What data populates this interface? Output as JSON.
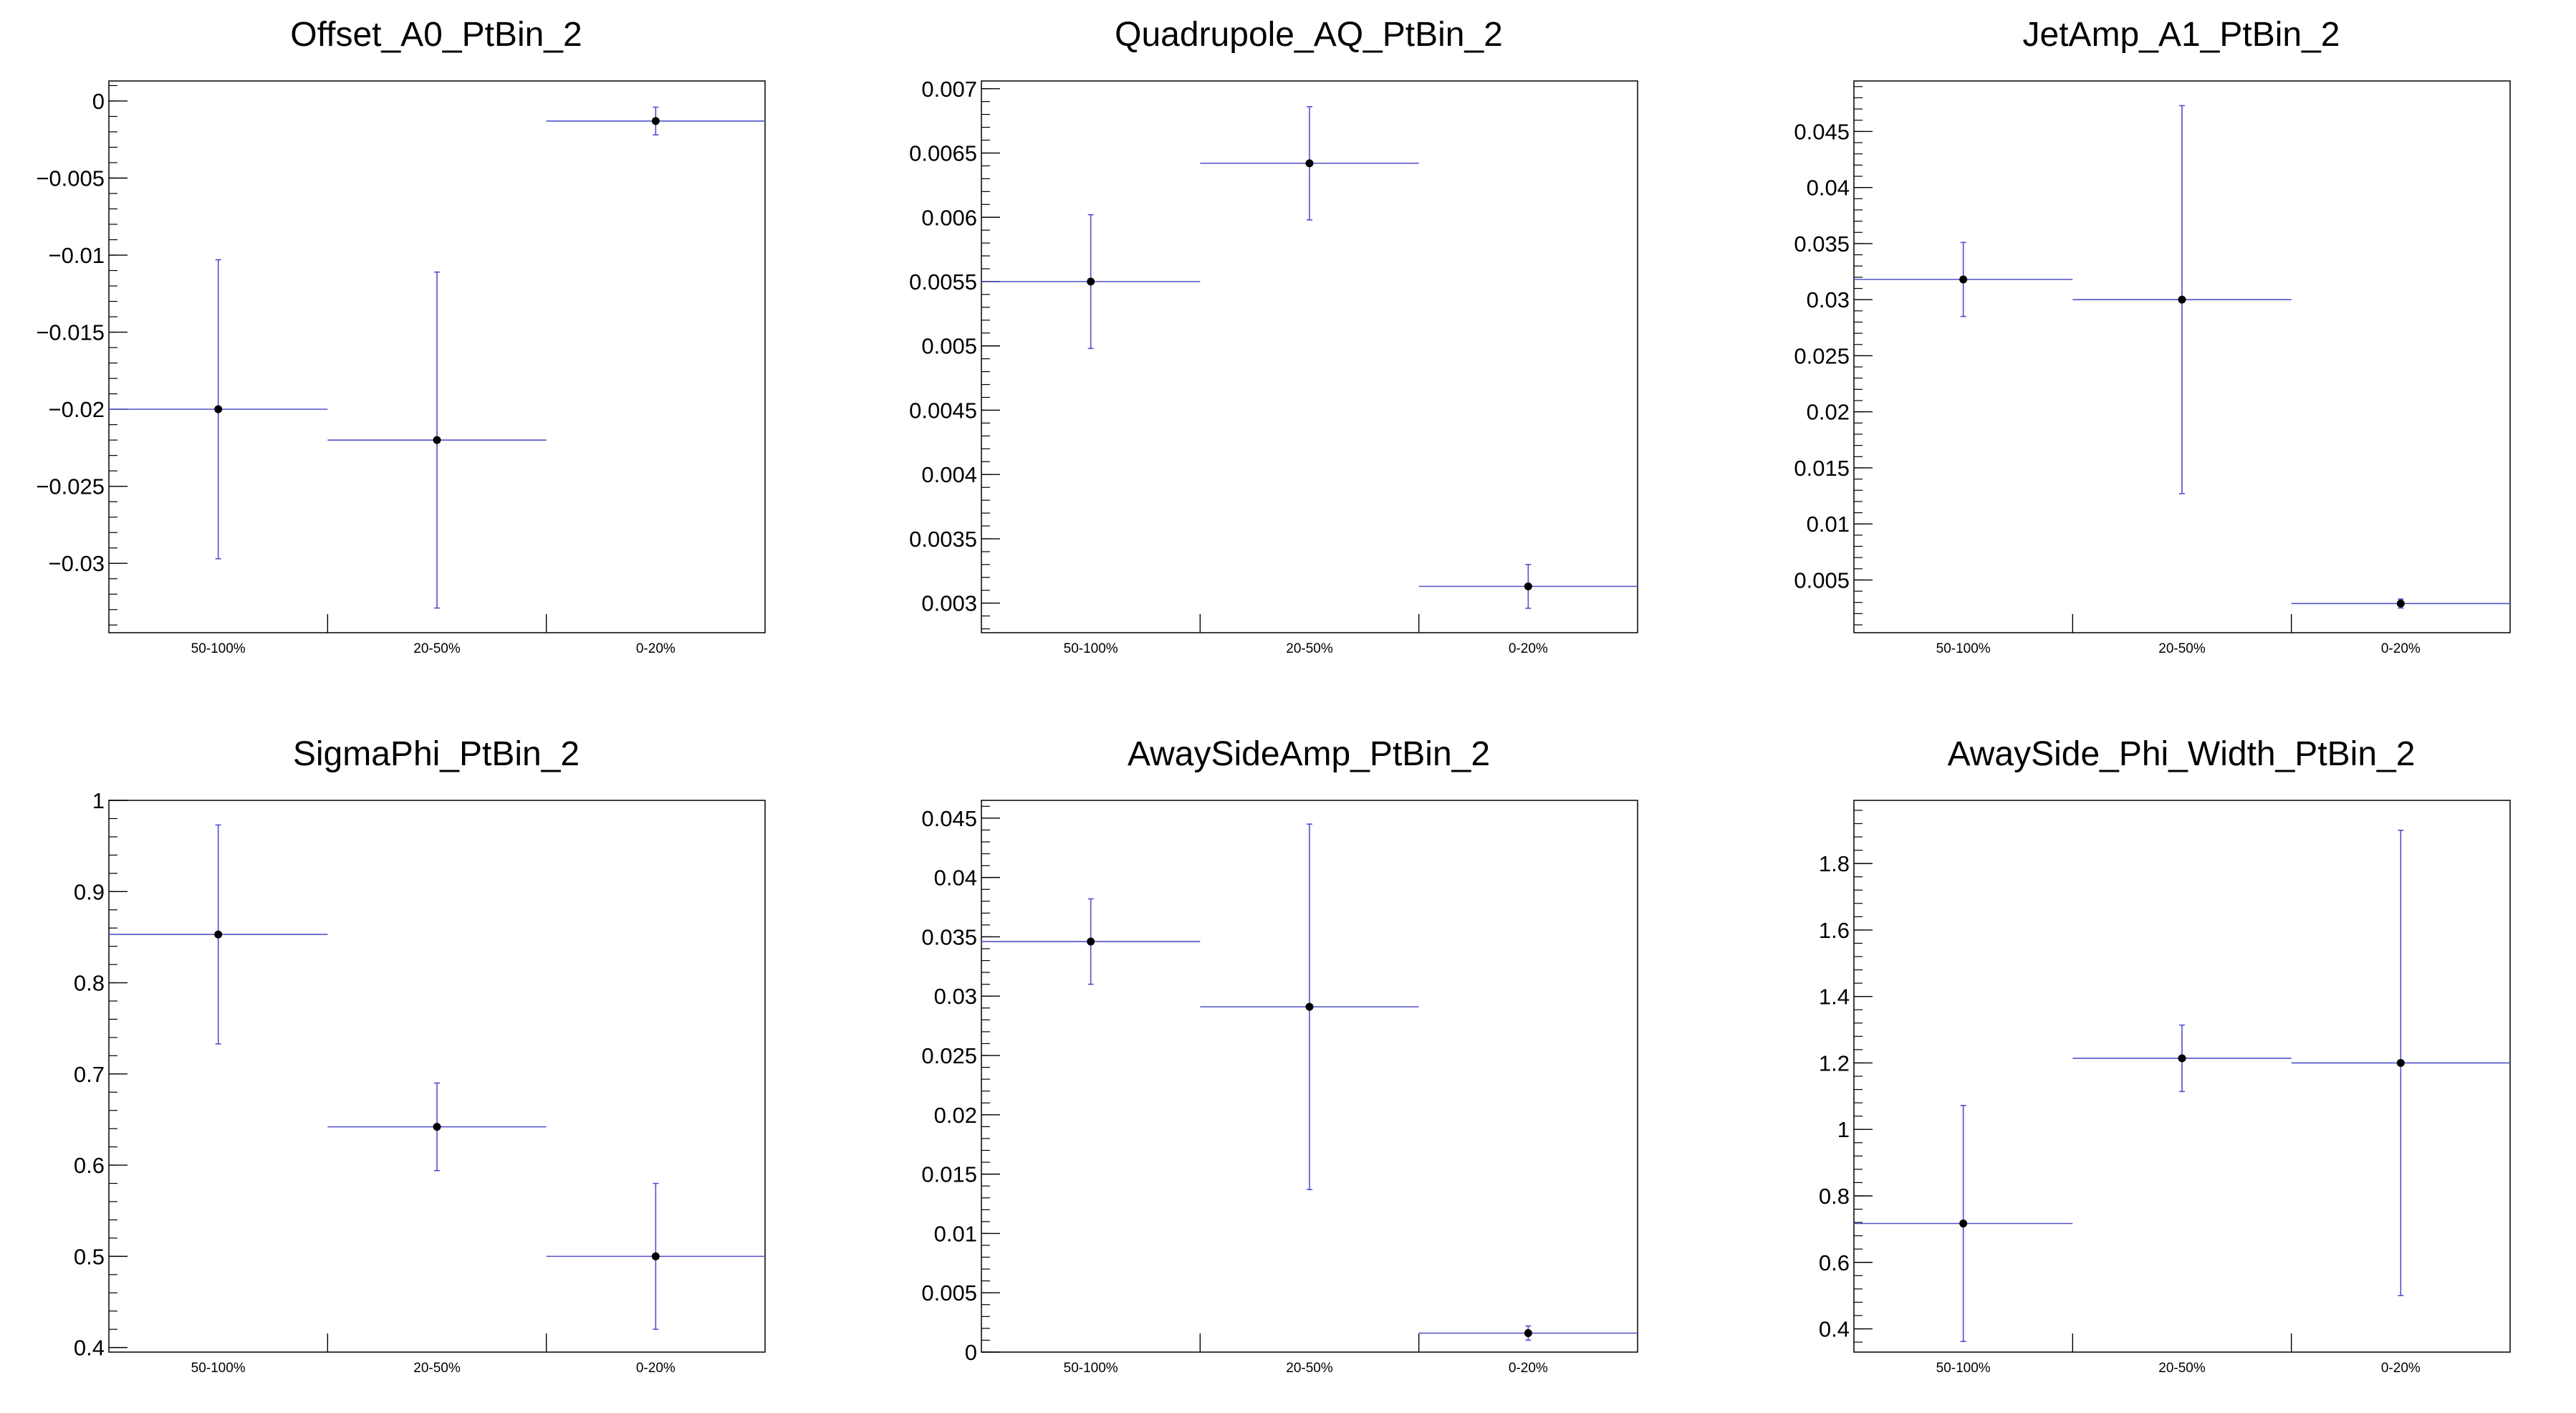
{
  "colors": {
    "error_bar": "#5050cc",
    "marker": "#000000",
    "axis": "#000000"
  },
  "chart_data": [
    {
      "type": "scatter",
      "title": "Offset_A0_PtBin_2",
      "categories": [
        "50-100%",
        "20-50%",
        "0-20%"
      ],
      "values": [
        -0.02,
        -0.022,
        -0.0013
      ],
      "errors": [
        0.0097,
        0.0109,
        0.0009
      ],
      "ylim": [
        -0.0345,
        0.0013
      ],
      "yticks": [
        0,
        -0.005,
        -0.01,
        -0.015,
        -0.02,
        -0.025,
        -0.03
      ],
      "ytick_labels": [
        "0",
        "−0.005",
        "−0.01",
        "−0.015",
        "−0.02",
        "−0.025",
        "−0.03"
      ],
      "grid": false
    },
    {
      "type": "scatter",
      "title": "Quadrupole_AQ_PtBin_2",
      "categories": [
        "50-100%",
        "20-50%",
        "0-20%"
      ],
      "values": [
        0.0055,
        0.00642,
        0.00313
      ],
      "errors": [
        0.00052,
        0.00044,
        0.00017
      ],
      "ylim": [
        0.00277,
        0.00706
      ],
      "yticks": [
        0.003,
        0.0035,
        0.004,
        0.0045,
        0.005,
        0.0055,
        0.006,
        0.0065,
        0.007
      ],
      "ytick_labels": [
        "0.003",
        "0.0035",
        "0.004",
        "0.0045",
        "0.005",
        "0.0055",
        "0.006",
        "0.0065",
        "0.007"
      ],
      "grid": false
    },
    {
      "type": "scatter",
      "title": "JetAmp_A1_PtBin_2",
      "categories": [
        "50-100%",
        "20-50%",
        "0-20%"
      ],
      "values": [
        0.0318,
        0.03,
        0.0029
      ],
      "errors": [
        0.0033,
        0.0173,
        0.0004
      ],
      "ylim": [
        0.0003,
        0.0495
      ],
      "yticks": [
        0.005,
        0.01,
        0.015,
        0.02,
        0.025,
        0.03,
        0.035,
        0.04,
        0.045
      ],
      "ytick_labels": [
        "0.005",
        "0.01",
        "0.015",
        "0.02",
        "0.025",
        "0.03",
        "0.035",
        "0.04",
        "0.045"
      ],
      "grid": false
    },
    {
      "type": "scatter",
      "title": "SigmaPhi_PtBin_2",
      "categories": [
        "50-100%",
        "20-50%",
        "0-20%"
      ],
      "values": [
        0.853,
        0.642,
        0.5
      ],
      "errors": [
        0.12,
        0.048,
        0.08
      ],
      "ylim": [
        0.395,
        1.0
      ],
      "yticks": [
        0.4,
        0.5,
        0.6,
        0.7,
        0.8,
        0.9,
        1
      ],
      "ytick_labels": [
        "0.4",
        "0.5",
        "0.6",
        "0.7",
        "0.8",
        "0.9",
        "1"
      ],
      "grid": false
    },
    {
      "type": "scatter",
      "title": "AwaySideAmp_PtBin_2",
      "categories": [
        "50-100%",
        "20-50%",
        "0-20%"
      ],
      "values": [
        0.0346,
        0.0291,
        0.0016
      ],
      "errors": [
        0.0036,
        0.0154,
        0.0006
      ],
      "ylim": [
        0.0,
        0.0465
      ],
      "yticks": [
        0,
        0.005,
        0.01,
        0.015,
        0.02,
        0.025,
        0.03,
        0.035,
        0.04,
        0.045
      ],
      "ytick_labels": [
        "0",
        "0.005",
        "0.01",
        "0.015",
        "0.02",
        "0.025",
        "0.03",
        "0.035",
        "0.04",
        "0.045"
      ],
      "grid": false
    },
    {
      "type": "scatter",
      "title": "AwaySide_Phi_Width_PtBin_2",
      "categories": [
        "50-100%",
        "20-50%",
        "0-20%"
      ],
      "values": [
        0.717,
        1.214,
        1.2
      ],
      "errors": [
        0.355,
        0.1,
        0.7
      ],
      "ylim": [
        0.33,
        1.99
      ],
      "yticks": [
        0.4,
        0.6,
        0.8,
        1,
        1.2,
        1.4,
        1.6,
        1.8
      ],
      "ytick_labels": [
        "0.4",
        "0.6",
        "0.8",
        "1",
        "1.2",
        "1.4",
        "1.6",
        "1.8"
      ],
      "grid": false
    }
  ]
}
